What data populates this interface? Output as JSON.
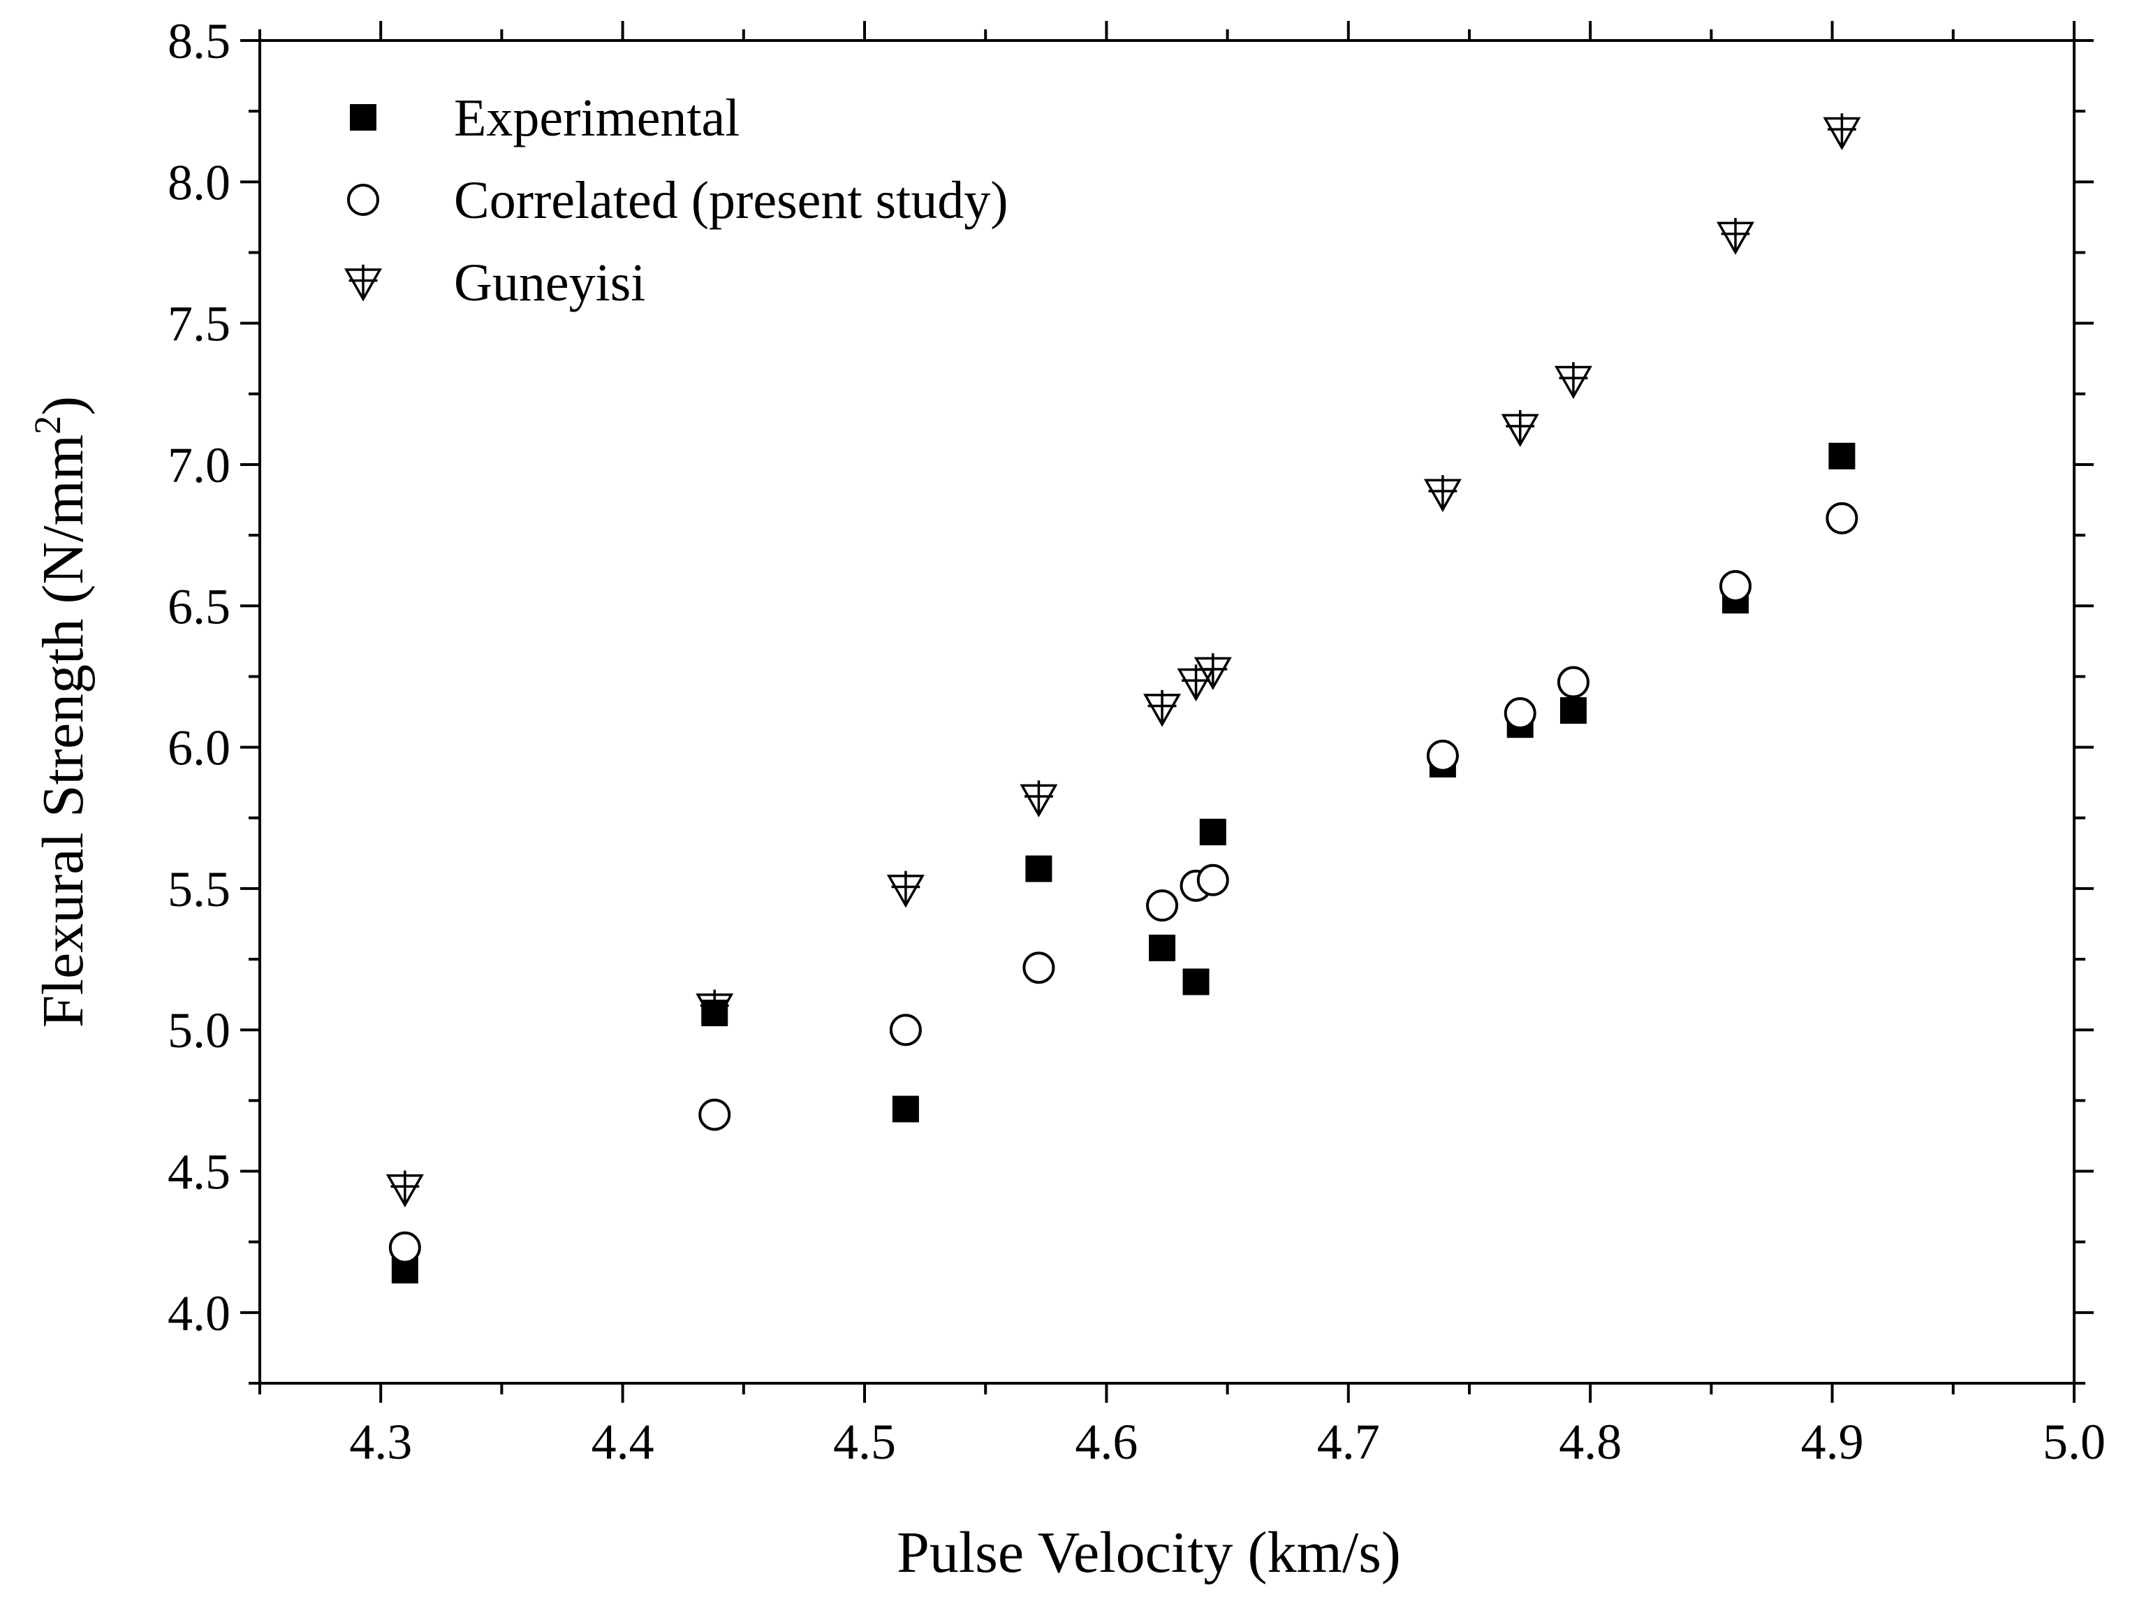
{
  "chart_data": {
    "type": "scatter",
    "title": "",
    "xlabel": "Pulse Velocity (km/s)",
    "ylabel_main": "Flexural Strength (N/mm",
    "ylabel_sup": "2",
    "ylabel_close": ")",
    "xlim": [
      4.25,
      5.0
    ],
    "ylim": [
      3.75,
      8.5
    ],
    "xticks": [
      "4.3",
      "4.4",
      "4.5",
      "4.6",
      "4.7",
      "4.8",
      "4.9",
      "5.0"
    ],
    "yticks": [
      "4.0",
      "4.5",
      "5.0",
      "5.5",
      "6.0",
      "6.5",
      "7.0",
      "7.5",
      "8.0",
      "8.5"
    ],
    "legend_position": "top-left",
    "series": [
      {
        "name": "Experimental",
        "marker": "filled-square",
        "color": "#000000",
        "x": [
          4.31,
          4.438,
          4.517,
          4.572,
          4.623,
          4.637,
          4.644,
          4.739,
          4.771,
          4.793,
          4.86,
          4.904
        ],
        "y": [
          4.15,
          5.06,
          4.72,
          5.57,
          5.29,
          5.17,
          5.7,
          5.94,
          6.08,
          6.13,
          6.52,
          7.03
        ]
      },
      {
        "name": "Correlated (present study)",
        "marker": "open-circle",
        "color": "#000000",
        "x": [
          4.31,
          4.438,
          4.517,
          4.572,
          4.623,
          4.637,
          4.644,
          4.739,
          4.771,
          4.793,
          4.86,
          4.904
        ],
        "y": [
          4.23,
          4.7,
          5.0,
          5.22,
          5.44,
          5.51,
          5.53,
          5.97,
          6.12,
          6.23,
          6.57,
          6.81
        ]
      },
      {
        "name": "Guneyisi",
        "marker": "open-down-triangle-cross",
        "color": "#000000",
        "x": [
          4.31,
          4.438,
          4.517,
          4.572,
          4.623,
          4.637,
          4.644,
          4.739,
          4.771,
          4.793,
          4.86,
          4.904
        ],
        "y": [
          4.44,
          5.08,
          5.5,
          5.82,
          6.14,
          6.23,
          6.27,
          6.9,
          7.13,
          7.3,
          7.81,
          8.18
        ]
      }
    ]
  }
}
